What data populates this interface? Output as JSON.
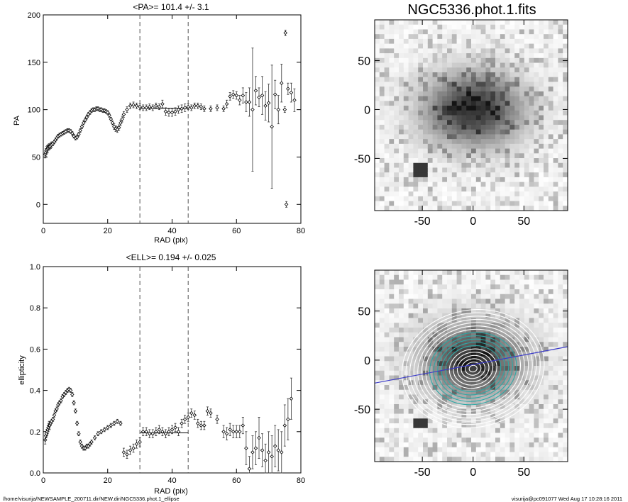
{
  "chart_data": [
    {
      "type": "scatter",
      "title": "<PA>= 101.4 +/-   3.1",
      "xlabel": "RAD (pix)",
      "ylabel": "PA",
      "xlim": [
        0,
        80
      ],
      "ylim": [
        -20,
        200
      ],
      "xticks": [
        0,
        20,
        40,
        60,
        80
      ],
      "yticks": [
        0,
        50,
        100,
        150,
        200
      ],
      "vlines": [
        30,
        45
      ],
      "mean_line": {
        "x": [
          30,
          45
        ],
        "y": 101.4
      },
      "points": [
        [
          0.6,
          53,
          4
        ],
        [
          0.8,
          55,
          4
        ],
        [
          1,
          57,
          4
        ],
        [
          1.2,
          58,
          4
        ],
        [
          1.4,
          59,
          4
        ],
        [
          1.6,
          60,
          3
        ],
        [
          1.8,
          61,
          3
        ],
        [
          2,
          61,
          3
        ],
        [
          2.3,
          62,
          3
        ],
        [
          2.6,
          63,
          3
        ],
        [
          3,
          64,
          2
        ],
        [
          3.4,
          66,
          2
        ],
        [
          3.8,
          68,
          2
        ],
        [
          4.2,
          70,
          2
        ],
        [
          4.6,
          72,
          2
        ],
        [
          5,
          73,
          2
        ],
        [
          5.5,
          74,
          2
        ],
        [
          6,
          75,
          2
        ],
        [
          6.5,
          76,
          2
        ],
        [
          7,
          77,
          2
        ],
        [
          7.5,
          78,
          2
        ],
        [
          8,
          78,
          2
        ],
        [
          8.5,
          77,
          2
        ],
        [
          9,
          75,
          2
        ],
        [
          9.5,
          72,
          2
        ],
        [
          10,
          70,
          2
        ],
        [
          10.5,
          71,
          2
        ],
        [
          11,
          74,
          2
        ],
        [
          11.5,
          78,
          2
        ],
        [
          12,
          82,
          2
        ],
        [
          12.5,
          86,
          2
        ],
        [
          13,
          89,
          2
        ],
        [
          13.5,
          92,
          2
        ],
        [
          14,
          95,
          2
        ],
        [
          14.5,
          97,
          2
        ],
        [
          15,
          99,
          2
        ],
        [
          15.5,
          100,
          2
        ],
        [
          16,
          100,
          2
        ],
        [
          16.5,
          101,
          2
        ],
        [
          17,
          101,
          2
        ],
        [
          17.5,
          100,
          2
        ],
        [
          18,
          100,
          2
        ],
        [
          18.5,
          99,
          2
        ],
        [
          19,
          99,
          2
        ],
        [
          19.5,
          98,
          2
        ],
        [
          20,
          97,
          2
        ],
        [
          20.5,
          94,
          2
        ],
        [
          21,
          90,
          2
        ],
        [
          21.5,
          86,
          2
        ],
        [
          22,
          82,
          3
        ],
        [
          22.5,
          80,
          3
        ],
        [
          23,
          79,
          3
        ],
        [
          23.5,
          81,
          3
        ],
        [
          24,
          86,
          3
        ],
        [
          24.5,
          90,
          3
        ],
        [
          25,
          95,
          3
        ],
        [
          26,
          100,
          3
        ],
        [
          27,
          104,
          3
        ],
        [
          28,
          105,
          3
        ],
        [
          29,
          104,
          3
        ],
        [
          30,
          103,
          3
        ],
        [
          31,
          102,
          3
        ],
        [
          32,
          102,
          3
        ],
        [
          33,
          103,
          3
        ],
        [
          34,
          102,
          3
        ],
        [
          35,
          104,
          3
        ],
        [
          36,
          103,
          3
        ],
        [
          37,
          106,
          4
        ],
        [
          38,
          98,
          4
        ],
        [
          39,
          97,
          4
        ],
        [
          40,
          97,
          4
        ],
        [
          41,
          98,
          4
        ],
        [
          42,
          100,
          4
        ],
        [
          43,
          101,
          4
        ],
        [
          44,
          102,
          4
        ],
        [
          45,
          103,
          3
        ],
        [
          46,
          102,
          3
        ],
        [
          47,
          104,
          3
        ],
        [
          48,
          104,
          3
        ],
        [
          49,
          103,
          3
        ],
        [
          50,
          101,
          3
        ],
        [
          52,
          101,
          3
        ],
        [
          54,
          102,
          3
        ],
        [
          56,
          101,
          3
        ],
        [
          57,
          106,
          4
        ],
        [
          58,
          114,
          4
        ],
        [
          59,
          116,
          4
        ],
        [
          60,
          115,
          4
        ],
        [
          61,
          110,
          5
        ],
        [
          62,
          115,
          8
        ],
        [
          63,
          108,
          10
        ],
        [
          64,
          108,
          15
        ],
        [
          65,
          100,
          65
        ],
        [
          66,
          120,
          15
        ],
        [
          67,
          113,
          10
        ],
        [
          68,
          115,
          20
        ],
        [
          69,
          104,
          15
        ],
        [
          70,
          107,
          20
        ],
        [
          71,
          82,
          65
        ],
        [
          72,
          116,
          15
        ],
        [
          73,
          100,
          15
        ],
        [
          74,
          128,
          20
        ],
        [
          75,
          100,
          3
        ],
        [
          75.2,
          181,
          3
        ],
        [
          75.5,
          0,
          3
        ],
        [
          76,
          122,
          6
        ],
        [
          77,
          118,
          10
        ],
        [
          78,
          110,
          12
        ]
      ]
    },
    {
      "type": "scatter",
      "title": "<ELL>= 0.194 +/-  0.025",
      "xlabel": "RAD (pix)",
      "ylabel": "ellipticity",
      "xlim": [
        0,
        80
      ],
      "ylim": [
        0,
        1
      ],
      "xticks": [
        0,
        20,
        40,
        60,
        80
      ],
      "yticks": [
        0.0,
        0.2,
        0.4,
        0.6,
        0.8,
        1.0
      ],
      "ytick_labels": [
        "0.0",
        "0.2",
        "0.4",
        "0.6",
        "0.8",
        "1.0"
      ],
      "vlines": [
        30,
        45
      ],
      "mean_line": {
        "x": [
          30,
          45
        ],
        "y": 0.194
      },
      "points": [
        [
          0.6,
          0.16,
          0.02
        ],
        [
          0.8,
          0.18,
          0.02
        ],
        [
          1,
          0.19,
          0.02
        ],
        [
          1.2,
          0.2,
          0.02
        ],
        [
          1.4,
          0.21,
          0.02
        ],
        [
          1.6,
          0.22,
          0.02
        ],
        [
          1.8,
          0.23,
          0.02
        ],
        [
          2,
          0.23,
          0.02
        ],
        [
          2.3,
          0.24,
          0.01
        ],
        [
          2.6,
          0.25,
          0.01
        ],
        [
          3,
          0.26,
          0.01
        ],
        [
          3.4,
          0.28,
          0.01
        ],
        [
          3.8,
          0.3,
          0.01
        ],
        [
          4.2,
          0.31,
          0.01
        ],
        [
          4.6,
          0.33,
          0.01
        ],
        [
          5,
          0.34,
          0.01
        ],
        [
          5.5,
          0.35,
          0.01
        ],
        [
          6,
          0.37,
          0.01
        ],
        [
          6.5,
          0.38,
          0.01
        ],
        [
          7,
          0.39,
          0.01
        ],
        [
          7.5,
          0.4,
          0.01
        ],
        [
          8,
          0.405,
          0.01
        ],
        [
          8.5,
          0.4,
          0.01
        ],
        [
          9,
          0.38,
          0.01
        ],
        [
          9.5,
          0.34,
          0.01
        ],
        [
          10,
          0.3,
          0.01
        ],
        [
          10.5,
          0.24,
          0.01
        ],
        [
          11,
          0.19,
          0.01
        ],
        [
          11.5,
          0.15,
          0.01
        ],
        [
          12,
          0.13,
          0.01
        ],
        [
          12.5,
          0.12,
          0.01
        ],
        [
          13,
          0.12,
          0.01
        ],
        [
          13.5,
          0.13,
          0.01
        ],
        [
          14,
          0.13,
          0.01
        ],
        [
          14.5,
          0.14,
          0.01
        ],
        [
          15,
          0.15,
          0.01
        ],
        [
          16,
          0.17,
          0.01
        ],
        [
          17,
          0.19,
          0.01
        ],
        [
          18,
          0.2,
          0.01
        ],
        [
          19,
          0.21,
          0.01
        ],
        [
          20,
          0.22,
          0.01
        ],
        [
          21,
          0.23,
          0.01
        ],
        [
          22,
          0.24,
          0.01
        ],
        [
          23,
          0.25,
          0.01
        ],
        [
          24,
          0.24,
          0.01
        ],
        [
          25,
          0.1,
          0.02
        ],
        [
          26,
          0.09,
          0.02
        ],
        [
          27,
          0.11,
          0.02
        ],
        [
          28,
          0.12,
          0.02
        ],
        [
          29,
          0.14,
          0.02
        ],
        [
          30,
          0.15,
          0.02
        ],
        [
          31,
          0.2,
          0.02
        ],
        [
          32,
          0.2,
          0.02
        ],
        [
          33,
          0.19,
          0.02
        ],
        [
          34,
          0.19,
          0.02
        ],
        [
          35,
          0.2,
          0.02
        ],
        [
          36,
          0.21,
          0.02
        ],
        [
          37,
          0.2,
          0.02
        ],
        [
          38,
          0.19,
          0.02
        ],
        [
          39,
          0.2,
          0.02
        ],
        [
          40,
          0.21,
          0.02
        ],
        [
          41,
          0.22,
          0.02
        ],
        [
          42,
          0.2,
          0.02
        ],
        [
          43,
          0.24,
          0.02
        ],
        [
          44,
          0.26,
          0.02
        ],
        [
          45,
          0.27,
          0.02
        ],
        [
          46,
          0.29,
          0.02
        ],
        [
          47,
          0.28,
          0.02
        ],
        [
          48,
          0.24,
          0.02
        ],
        [
          49,
          0.23,
          0.02
        ],
        [
          50,
          0.23,
          0.02
        ],
        [
          51,
          0.3,
          0.02
        ],
        [
          52,
          0.29,
          0.02
        ],
        [
          54,
          0.26,
          0.02
        ],
        [
          56,
          0.2,
          0.03
        ],
        [
          57,
          0.19,
          0.03
        ],
        [
          58,
          0.21,
          0.03
        ],
        [
          59,
          0.2,
          0.03
        ],
        [
          60,
          0.2,
          0.03
        ],
        [
          61,
          0.2,
          0.03
        ],
        [
          62,
          0.23,
          0.04
        ],
        [
          63,
          0.12,
          0.08
        ],
        [
          64,
          0.02,
          0.06
        ],
        [
          65,
          0.1,
          0.08
        ],
        [
          66,
          0.12,
          0.08
        ],
        [
          67,
          0.17,
          0.1
        ],
        [
          68,
          0.11,
          0.08
        ],
        [
          69,
          0.06,
          0.08
        ],
        [
          70,
          0.1,
          0.1
        ],
        [
          71,
          0.08,
          0.1
        ],
        [
          72,
          0.13,
          0.1
        ],
        [
          73,
          0.11,
          0.1
        ],
        [
          74,
          0.1,
          0.1
        ],
        [
          75,
          0.23,
          0.1
        ],
        [
          76,
          0.26,
          0.1
        ],
        [
          77,
          0.36,
          0.1
        ]
      ]
    }
  ],
  "images": [
    {
      "title": "NGC5336.phot.1.fits",
      "xticks": [
        -50,
        0,
        50
      ],
      "yticks": [
        50,
        0,
        -50
      ]
    },
    {
      "title": "",
      "xticks": [
        -50,
        0,
        50
      ],
      "yticks": [
        50,
        0,
        -50
      ]
    }
  ],
  "footer": {
    "left": "/home/visurija/NEWSAMPLE_200711.dir/NEW.dir/NGC5336.phot.1_ellipse",
    "right": "visurija@pc091077  Wed Aug 17 10:28:16 2011"
  },
  "colors": {
    "axis": "#000000",
    "contour": "#ffffff",
    "contour_inner": "#2fa8a6",
    "fit_line": "#3b3bc8"
  }
}
